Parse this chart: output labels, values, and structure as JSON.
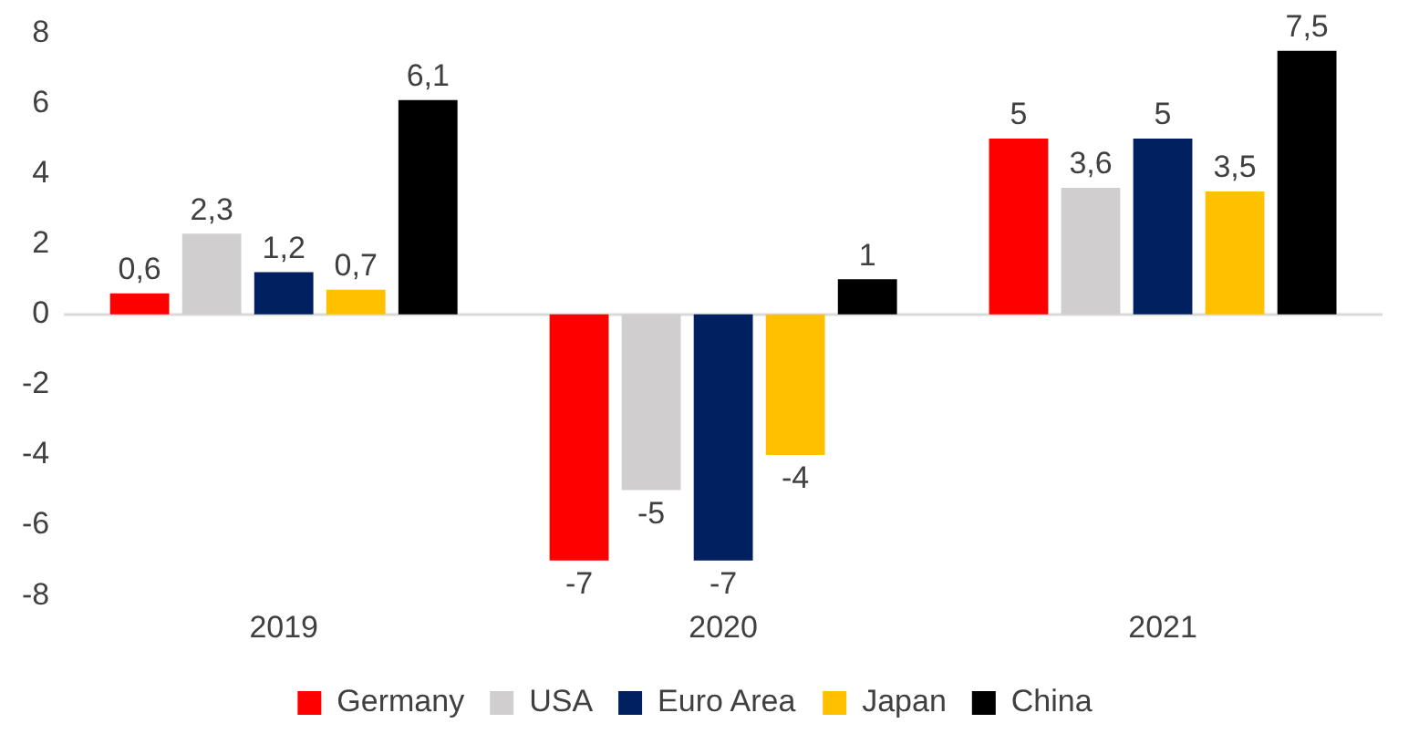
{
  "chart_data": {
    "type": "bar",
    "categories": [
      "2019",
      "2020",
      "2021"
    ],
    "series": [
      {
        "name": "Germany",
        "color": "#ff0000",
        "values": [
          0.6,
          -7,
          5
        ],
        "value_labels": [
          "0,6",
          "-7",
          "5"
        ]
      },
      {
        "name": "USA",
        "color": "#d0cece",
        "values": [
          2.3,
          -5,
          3.6
        ],
        "value_labels": [
          "2,3",
          "-5",
          "3,6"
        ]
      },
      {
        "name": "Euro Area",
        "color": "#002060",
        "values": [
          1.2,
          -7,
          5
        ],
        "value_labels": [
          "1,2",
          "-7",
          "5"
        ]
      },
      {
        "name": "Japan",
        "color": "#ffc000",
        "values": [
          0.7,
          -4,
          3.5
        ],
        "value_labels": [
          "0,7",
          "-4",
          "3,5"
        ]
      },
      {
        "name": "China",
        "color": "#000000",
        "values": [
          6.1,
          1,
          7.5
        ],
        "value_labels": [
          "6,1",
          "1",
          "7,5"
        ]
      }
    ],
    "ylim": [
      -8,
      8
    ],
    "yticks": [
      -8,
      -6,
      -4,
      -2,
      0,
      2,
      4,
      6,
      8
    ],
    "ref_lines": [
      {
        "axis": "y",
        "value": 0,
        "color": "#d9d9d9"
      }
    ],
    "grid": false,
    "legend": "bottom"
  }
}
